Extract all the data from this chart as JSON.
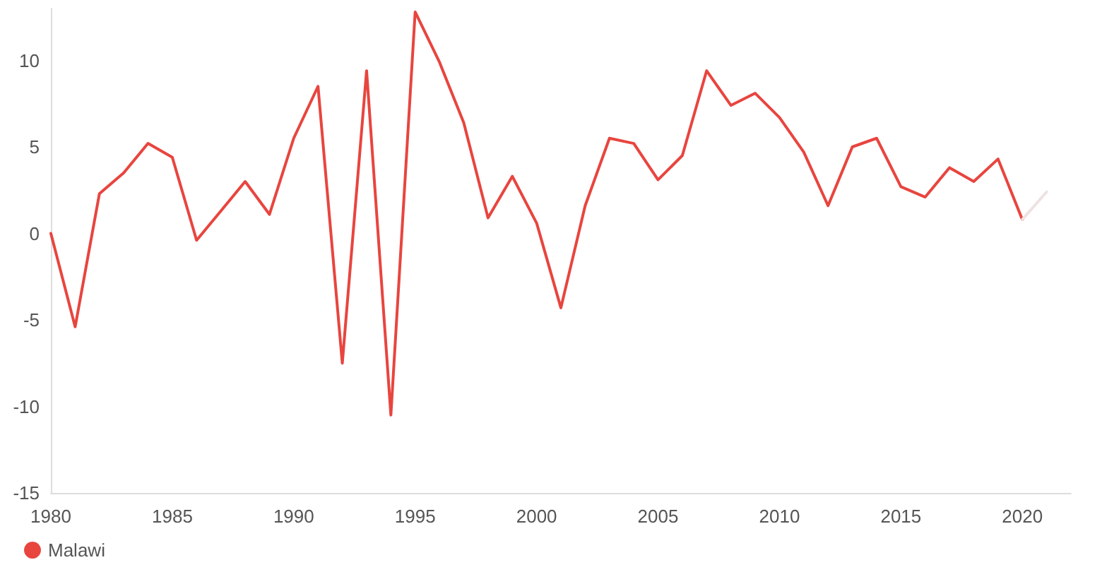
{
  "chart_data": {
    "type": "line",
    "x": [
      1980,
      1981,
      1982,
      1983,
      1984,
      1985,
      1986,
      1987,
      1988,
      1989,
      1990,
      1991,
      1992,
      1993,
      1994,
      1995,
      1996,
      1997,
      1998,
      1999,
      2000,
      2001,
      2002,
      2003,
      2004,
      2005,
      2006,
      2007,
      2008,
      2009,
      2010,
      2011,
      2012,
      2013,
      2014,
      2015,
      2016,
      2017,
      2018,
      2019,
      2020
    ],
    "series": [
      {
        "name": "Malawi",
        "color": "#e8453f",
        "values": [
          0.0,
          -5.4,
          2.3,
          3.5,
          5.2,
          4.4,
          -0.4,
          1.3,
          3.0,
          1.1,
          5.5,
          8.5,
          -7.5,
          9.4,
          -10.5,
          12.8,
          9.9,
          6.4,
          0.9,
          3.3,
          0.6,
          -4.3,
          1.6,
          5.5,
          5.2,
          3.1,
          4.5,
          9.4,
          7.4,
          8.1,
          6.7,
          4.7,
          1.6,
          5.0,
          5.5,
          2.7,
          2.1,
          3.8,
          3.0,
          4.3,
          0.8
        ]
      },
      {
        "type": "line",
        "color": "#efe2e2",
        "x": [
          2020,
          2021
        ],
        "values": [
          0.8,
          2.4
        ]
      }
    ],
    "xlim": [
      1980,
      2022
    ],
    "xticks": [
      1980,
      1985,
      1990,
      1995,
      2000,
      2005,
      2010,
      2015,
      2020
    ],
    "ylim": [
      -15,
      13
    ],
    "yticks": [
      -15,
      -10,
      -5,
      0,
      5,
      10
    ],
    "grid": false,
    "legend": "bottom left",
    "marker": "none",
    "line_style": "solid"
  }
}
